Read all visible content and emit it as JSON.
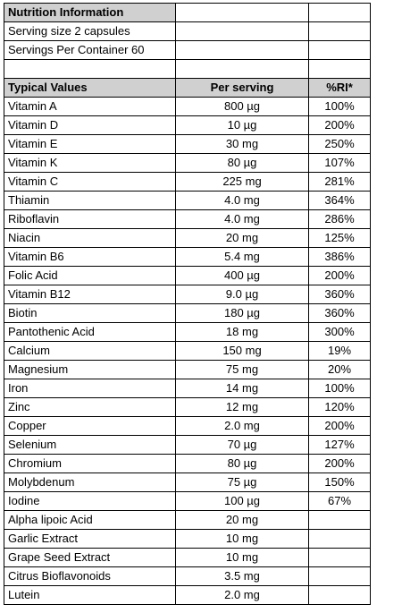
{
  "title": "Nutrition Information",
  "serving_size": "Serving size 2 capsules",
  "servings_per_container": "Servings Per Container 60",
  "headers": [
    "Typical Values",
    "Per serving",
    "%RI*"
  ],
  "rows": [
    [
      "Vitamin A",
      "800 µg",
      "100%"
    ],
    [
      "Vitamin D",
      "10 µg",
      "200%"
    ],
    [
      "Vitamin E",
      "30 mg",
      "250%"
    ],
    [
      "Vitamin K",
      "80 µg",
      "107%"
    ],
    [
      "Vitamin C",
      "225 mg",
      "281%"
    ],
    [
      "Thiamin",
      "4.0 mg",
      "364%"
    ],
    [
      "Riboflavin",
      "4.0 mg",
      "286%"
    ],
    [
      "Niacin",
      "20 mg",
      "125%"
    ],
    [
      "Vitamin B6",
      "5.4 mg",
      "386%"
    ],
    [
      "Folic Acid",
      "400 µg",
      "200%"
    ],
    [
      "Vitamin B12",
      "9.0 µg",
      "360%"
    ],
    [
      "Biotin",
      "180 µg",
      "360%"
    ],
    [
      "Pantothenic Acid",
      "18 mg",
      "300%"
    ],
    [
      "Calcium",
      "150 mg",
      "19%"
    ],
    [
      "Magnesium",
      "75 mg",
      "20%"
    ],
    [
      "Iron",
      "14 mg",
      "100%"
    ],
    [
      "Zinc",
      "12 mg",
      "120%"
    ],
    [
      "Copper",
      "2.0 mg",
      "200%"
    ],
    [
      "Selenium",
      "70 µg",
      "127%"
    ],
    [
      "Chromium",
      "80 µg",
      "200%"
    ],
    [
      "Molybdenum",
      "75 µg",
      "150%"
    ],
    [
      "Iodine",
      "100 µg",
      "67%"
    ],
    [
      "Alpha lipoic Acid",
      "20 mg",
      ""
    ],
    [
      "Garlic Extract",
      "10 mg",
      ""
    ],
    [
      "Grape Seed Extract",
      "10 mg",
      ""
    ],
    [
      "Citrus Bioflavonoids",
      "3.5 mg",
      ""
    ],
    [
      "Lutein",
      "2.0  mg",
      ""
    ]
  ]
}
